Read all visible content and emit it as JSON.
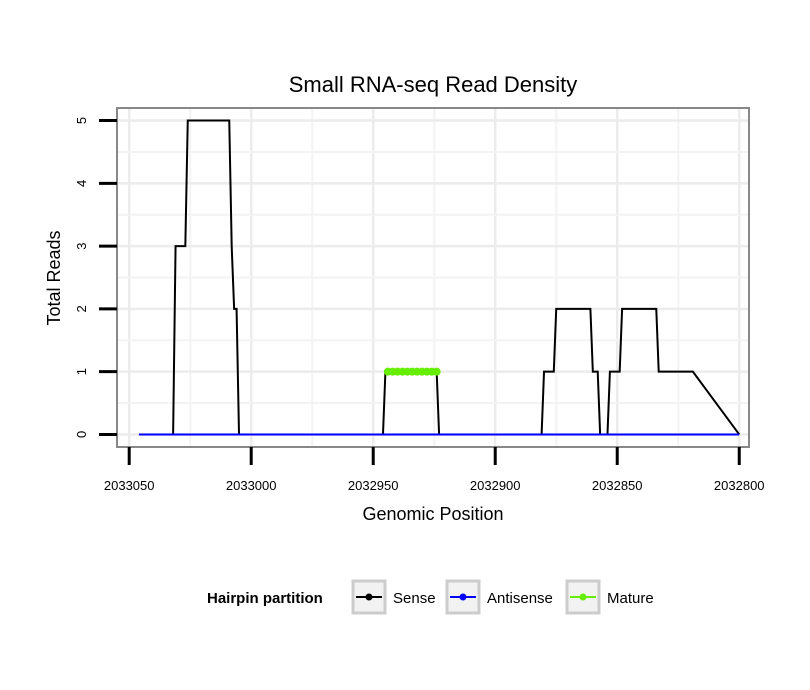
{
  "chart_data": {
    "type": "line",
    "title": "Small RNA-seq Read Density",
    "xlabel": "Genomic Position",
    "ylabel": "Total Reads",
    "x_reversed": true,
    "xlim": [
      2033055,
      2032796
    ],
    "ylim": [
      -0.2,
      5.2
    ],
    "x_ticks": [
      2033050,
      2033000,
      2032950,
      2032900,
      2032850,
      2032800
    ],
    "x_tick_labels": [
      "2033050",
      "2033000",
      "2032950",
      "2032900",
      "2032850",
      "2032800"
    ],
    "y_ticks": [
      0,
      1,
      2,
      3,
      4,
      5
    ],
    "y_tick_labels": [
      "0",
      "1",
      "2",
      "3",
      "4",
      "5"
    ],
    "grid": true,
    "legend": {
      "title": "Hairpin partition",
      "position": "bottom",
      "entries": [
        {
          "label": "Sense",
          "color": "#000000"
        },
        {
          "label": "Antisense",
          "color": "#0000ff"
        },
        {
          "label": "Mature",
          "color": "#66ee00"
        }
      ]
    },
    "series": [
      {
        "name": "Sense",
        "color": "#000000",
        "x": [
          2033046,
          2033032,
          2033031,
          2033027,
          2033026,
          2033009,
          2033008,
          2033007,
          2033006,
          2033005,
          2033004,
          2032946,
          2032945,
          2032924,
          2032923,
          2032881,
          2032880,
          2032876,
          2032875,
          2032861,
          2032860,
          2032858,
          2032857,
          2032854,
          2032853,
          2032849,
          2032848,
          2032847,
          2032846,
          2032834,
          2032833,
          2032820,
          2032819,
          2032800
        ],
        "y": [
          0,
          0,
          3,
          3,
          5,
          5,
          3,
          2,
          2,
          0,
          0,
          0,
          1,
          1,
          0,
          0,
          1,
          1,
          2,
          2,
          1,
          1,
          0,
          0,
          1,
          1,
          2,
          2,
          2,
          2,
          1,
          1,
          1,
          0
        ]
      },
      {
        "name": "Antisense",
        "color": "#0000ff",
        "x": [
          2033046,
          2032800
        ],
        "y": [
          0,
          0
        ]
      },
      {
        "name": "Mature",
        "color": "#66ee00",
        "x": [
          2032944,
          2032942,
          2032940,
          2032938,
          2032936,
          2032934,
          2032932,
          2032930,
          2032928,
          2032926,
          2032924
        ],
        "y": [
          1,
          1,
          1,
          1,
          1,
          1,
          1,
          1,
          1,
          1,
          1
        ]
      }
    ]
  }
}
